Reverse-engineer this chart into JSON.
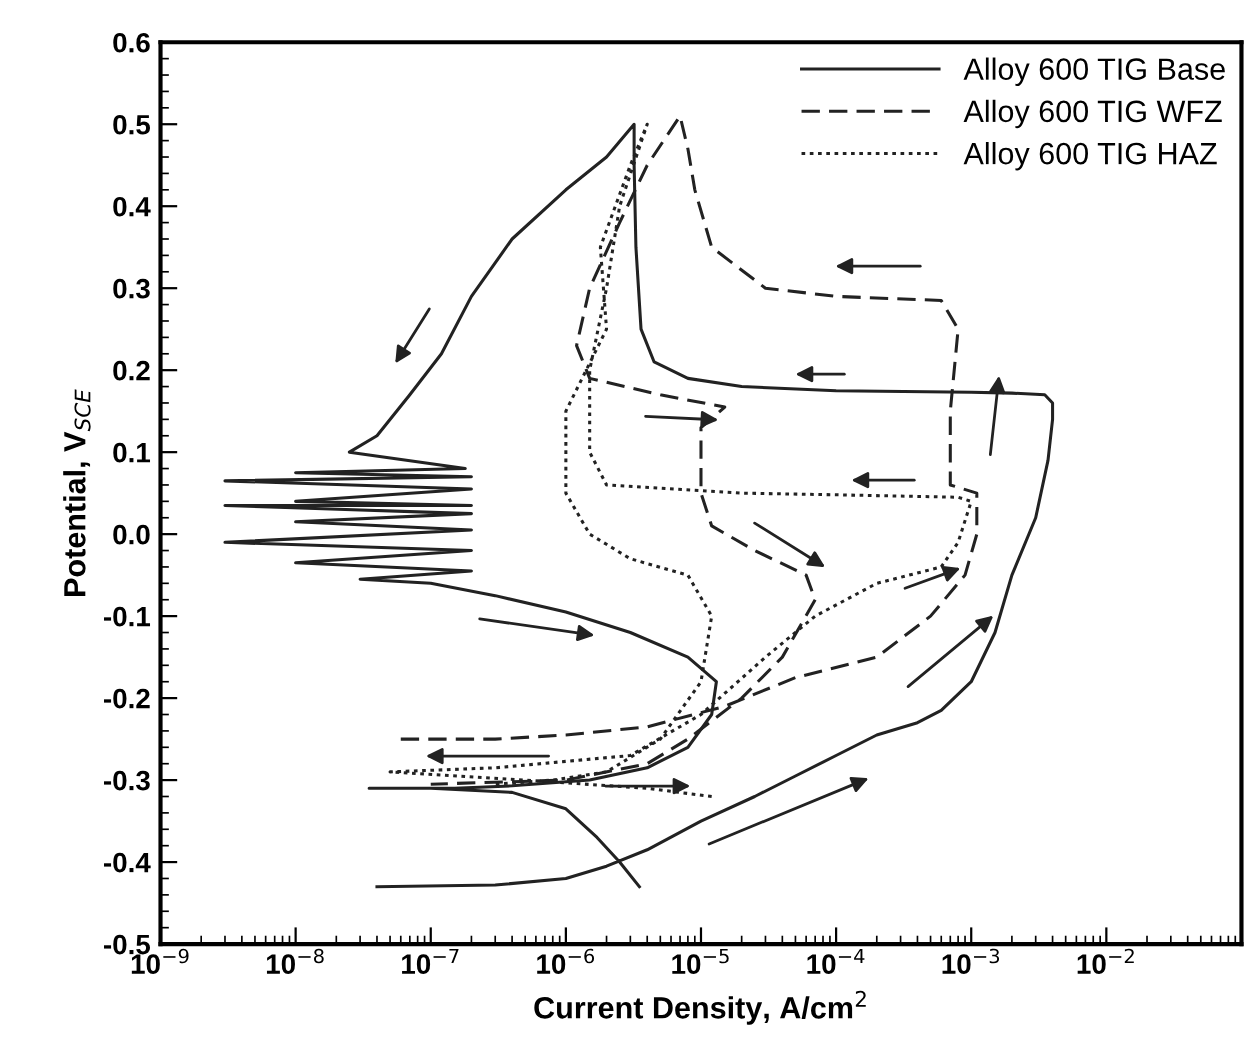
{
  "chart_data": {
    "type": "line",
    "xlabel": "Current Density, A/cm$^{2}$",
    "ylabel": "Potential, V$_{SCE}$",
    "log": "x",
    "xlim": [
      1e-09,
      0.1
    ],
    "ylim": [
      -0.5,
      0.6
    ],
    "xticks": [
      {
        "value": 1e-09,
        "label": "10$^{−9}$"
      },
      {
        "value": 1e-08,
        "label": "10$^{−8}$"
      },
      {
        "value": 1e-07,
        "label": "10$^{−7}$"
      },
      {
        "value": 1e-06,
        "label": "10$^{−6}$"
      },
      {
        "value": 1e-05,
        "label": "10$^{−5}$"
      },
      {
        "value": 0.0001,
        "label": "10$^{−4}$"
      },
      {
        "value": 0.001,
        "label": "10$^{−3}$"
      },
      {
        "value": 0.01,
        "label": "10$^{−2}$"
      }
    ],
    "yticks": [
      -0.5,
      -0.4,
      -0.3,
      -0.2,
      -0.1,
      {
        "value": 0.0,
        "label": "0.0"
      },
      0.1,
      0.2,
      0.3,
      0.4,
      0.5,
      0.6
    ],
    "grid": false,
    "legend": "top right",
    "marker": "none",
    "series": [
      {
        "name": "Alloy 600 TIG Base",
        "color": "#222222",
        "line_style": "solid",
        "x": [
          4e-08,
          3e-07,
          1e-06,
          2e-06,
          4e-06,
          1e-05,
          2.5e-05,
          5e-05,
          0.0001,
          0.0002,
          0.0004,
          0.0006,
          0.001,
          0.0015,
          0.002,
          0.003,
          0.0037,
          0.004,
          0.004,
          0.0035,
          0.002,
          0.001,
          0.0001,
          2e-05,
          8e-06,
          4.5e-06,
          3.6e-06,
          3.3e-06,
          3.2e-06,
          3.2e-06,
          2e-06,
          1e-06,
          4e-07,
          2e-07,
          1.2e-07,
          7e-08,
          4e-08,
          2.5e-08,
          1.8e-07,
          1e-08,
          2e-07,
          3e-09,
          2e-07,
          1e-08,
          2e-07,
          3e-09,
          2e-07,
          1e-08,
          2e-07,
          3e-09,
          2e-07,
          1e-08,
          2e-07,
          3e-08,
          1e-07,
          3e-07,
          1e-06,
          3e-06,
          8e-06,
          1.3e-05,
          1.2e-05,
          8e-06,
          4e-06,
          1.5e-06,
          4e-07,
          1.5e-07,
          5e-08,
          3.5e-08,
          1e-07,
          4e-07,
          1e-06,
          1.7e-06,
          2.5e-06,
          3.5e-06
        ],
        "values": [
          -0.43,
          -0.428,
          -0.42,
          -0.405,
          -0.385,
          -0.35,
          -0.32,
          -0.295,
          -0.27,
          -0.245,
          -0.23,
          -0.215,
          -0.18,
          -0.12,
          -0.05,
          0.02,
          0.09,
          0.14,
          0.16,
          0.17,
          0.172,
          0.173,
          0.175,
          0.18,
          0.19,
          0.21,
          0.25,
          0.35,
          0.45,
          0.5,
          0.46,
          0.42,
          0.36,
          0.29,
          0.22,
          0.17,
          0.12,
          0.1,
          0.08,
          0.075,
          0.07,
          0.065,
          0.055,
          0.04,
          0.035,
          0.035,
          0.025,
          0.015,
          0.005,
          -0.01,
          -0.02,
          -0.035,
          -0.045,
          -0.055,
          -0.06,
          -0.075,
          -0.095,
          -0.12,
          -0.15,
          -0.18,
          -0.22,
          -0.26,
          -0.285,
          -0.3,
          -0.307,
          -0.31,
          -0.31,
          -0.31,
          -0.31,
          -0.315,
          -0.335,
          -0.37,
          -0.4,
          -0.43
        ]
      },
      {
        "name": "Alloy 600 TIG WFZ",
        "color": "#222222",
        "line_style": "dashed",
        "x": [
          6e-08,
          3e-07,
          1e-06,
          4e-06,
          1.5e-05,
          5e-05,
          0.0002,
          0.0005,
          0.0009,
          0.0011,
          0.0011,
          0.0007,
          0.0007,
          0.0008,
          0.0006,
          0.0001,
          3e-05,
          1.2e-05,
          9e-06,
          8e-06,
          7e-06,
          4e-06,
          2.5e-06,
          1.5e-06,
          1.2e-06,
          1.5e-06,
          5e-06,
          1.5e-05,
          1e-05,
          1e-05,
          1e-05,
          1.2e-05,
          2.5e-05,
          6e-05,
          7e-05,
          4e-05,
          2e-05,
          8e-06,
          4e-06,
          1e-06,
          1e-07
        ],
        "values": [
          -0.25,
          -0.25,
          -0.245,
          -0.235,
          -0.21,
          -0.175,
          -0.15,
          -0.1,
          -0.05,
          0.0,
          0.05,
          0.06,
          0.15,
          0.25,
          0.285,
          0.29,
          0.3,
          0.35,
          0.42,
          0.47,
          0.51,
          0.45,
          0.38,
          0.3,
          0.23,
          0.19,
          0.17,
          0.155,
          0.13,
          0.1,
          0.05,
          0.01,
          -0.02,
          -0.05,
          -0.08,
          -0.15,
          -0.2,
          -0.25,
          -0.28,
          -0.3,
          -0.305
        ]
      },
      {
        "name": "Alloy 600 TIG HAZ",
        "color": "#222222",
        "line_style": "dotted",
        "x": [
          1.2e-05,
          4e-06,
          5e-07,
          5e-08,
          3e-07,
          3e-06,
          1e-05,
          3e-05,
          7e-05,
          0.0002,
          0.0006,
          0.0008,
          0.001,
          0.0008,
          0.0001,
          2e-05,
          2e-06,
          1.5e-06,
          1.5e-06,
          2e-06,
          2.5e-06,
          4e-06,
          3e-06,
          1.8e-06,
          2e-06,
          1e-06,
          1e-06,
          1.5e-06,
          3e-06,
          8e-06,
          1.2e-05,
          1e-05,
          5e-06,
          2e-06,
          8e-07,
          3e-07
        ],
        "values": [
          -0.32,
          -0.31,
          -0.3,
          -0.29,
          -0.285,
          -0.27,
          -0.22,
          -0.15,
          -0.1,
          -0.06,
          -0.04,
          -0.01,
          0.04,
          0.045,
          0.048,
          0.05,
          0.06,
          0.1,
          0.2,
          0.3,
          0.4,
          0.5,
          0.45,
          0.35,
          0.25,
          0.15,
          0.05,
          0.0,
          -0.03,
          -0.05,
          -0.1,
          -0.18,
          -0.25,
          -0.29,
          -0.3,
          -0.305
        ]
      }
    ]
  }
}
